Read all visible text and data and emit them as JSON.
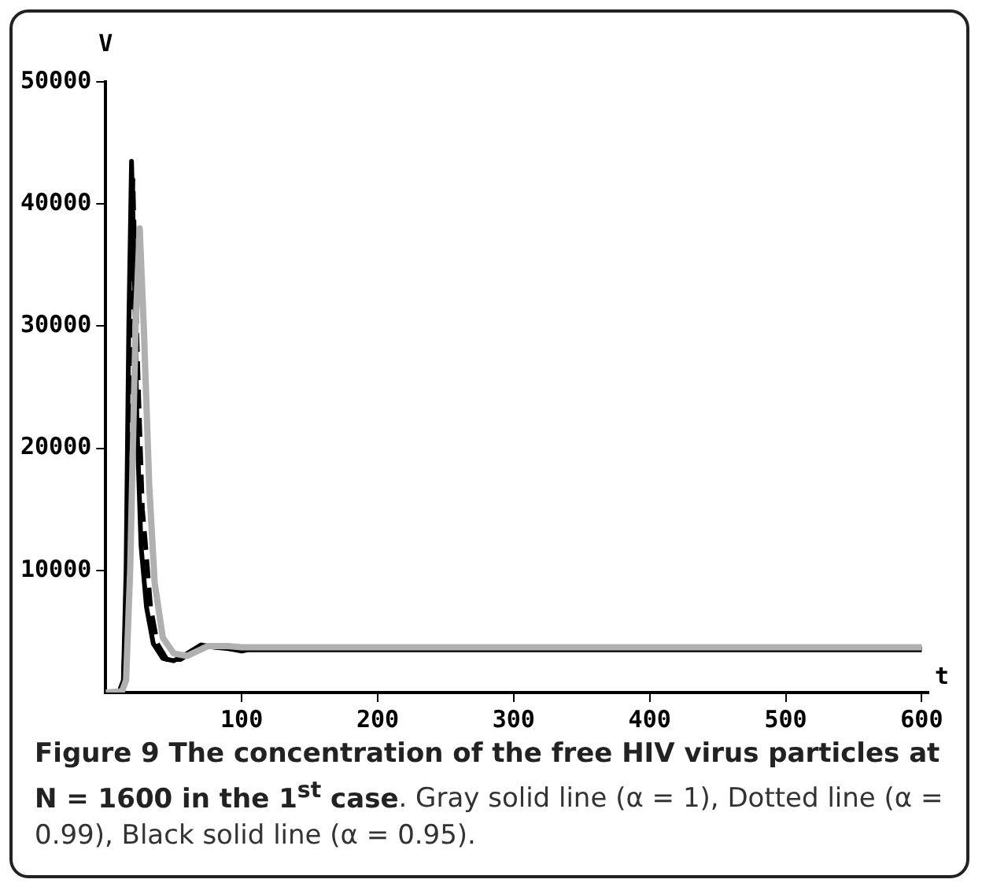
{
  "chart_data": {
    "type": "line",
    "xlabel": "t",
    "ylabel": "V",
    "xlim": [
      0,
      605
    ],
    "xticks": [
      100,
      200,
      300,
      400,
      500,
      600
    ],
    "ylim": [
      0,
      50000
    ],
    "yticks": [
      10000,
      20000,
      30000,
      40000,
      50000
    ],
    "grid": false,
    "legend": false,
    "marker": "none",
    "series": [
      {
        "color": "#b0b0b0",
        "line_style": "solid",
        "x": [
          0,
          12,
          15,
          18,
          22,
          25,
          28,
          32,
          36,
          42,
          50,
          60,
          75,
          90,
          100,
          600
        ],
        "values": [
          0,
          100,
          1000,
          10000,
          30000,
          38000,
          30000,
          17000,
          9000,
          4500,
          3200,
          3000,
          3800,
          3800,
          3700,
          3700
        ]
      },
      {
        "color": "#000000",
        "line_style": "dashed",
        "x": [
          0,
          10,
          13,
          16,
          18,
          20,
          22,
          24,
          27,
          29,
          33,
          38,
          45,
          55,
          70,
          85,
          100,
          110,
          600
        ],
        "values": [
          0,
          100,
          800,
          10000,
          30000,
          42000,
          33000,
          25000,
          15000,
          12500,
          7000,
          4000,
          2700,
          2700,
          3800,
          3700,
          3400,
          3600,
          3600
        ]
      },
      {
        "color": "#000000",
        "line_style": "solid",
        "x": [
          0,
          10,
          13,
          15,
          17,
          19,
          21,
          23,
          26,
          30,
          35,
          42,
          50,
          60,
          70,
          80,
          100,
          600
        ],
        "values": [
          0,
          100,
          1000,
          10000,
          30000,
          43500,
          35000,
          22000,
          12000,
          7000,
          4000,
          2800,
          2600,
          3200,
          3900,
          3700,
          3500,
          3500
        ]
      }
    ],
    "annotations": [
      "Figure 9 The concentration of the free HIV virus particles at N = 1600 in the 1$^{st}$ case",
      ". Gray solid line (α = 1), Dotted line (α = 0.99), Black solid line (α = 0.95)."
    ]
  }
}
